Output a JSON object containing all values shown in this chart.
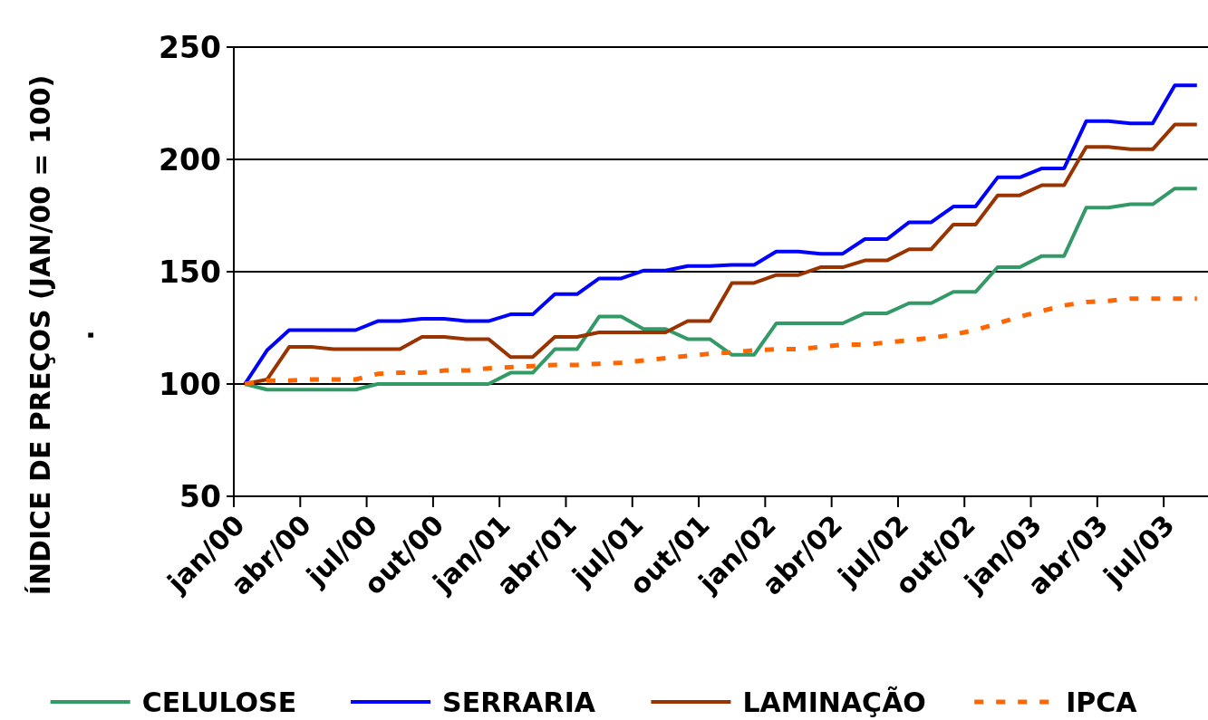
{
  "chart_data": {
    "type": "line",
    "ylabel": "ÍNDICE DE PREÇOS (JAN/00 = 100)\n.",
    "categories": [
      "jan/00",
      null,
      null,
      "abr/00",
      null,
      null,
      "jul/00",
      null,
      null,
      "out/00",
      null,
      null,
      "jan/01",
      null,
      null,
      "abr/01",
      null,
      null,
      "jul/01",
      null,
      null,
      "out/01",
      null,
      null,
      "jan/02",
      null,
      null,
      "abr/02",
      null,
      null,
      "jul/02",
      null,
      null,
      "out/02",
      null,
      null,
      "jan/03",
      null,
      null,
      "abr/03",
      null,
      null,
      "jul/03",
      null
    ],
    "ylim": [
      50,
      250
    ],
    "yticks": [
      50,
      100,
      150,
      200,
      250
    ],
    "grid": "y",
    "legend": "bottom",
    "marker": "none",
    "series": [
      {
        "name": "CELULOSE",
        "color": "#339966",
        "line_style": "solid",
        "values": [
          100,
          97.5,
          97.5,
          97.5,
          97.5,
          97.5,
          100,
          100,
          100,
          100,
          100,
          100,
          105,
          105,
          115.5,
          115.5,
          130,
          130,
          124.5,
          124.5,
          120,
          120,
          113,
          113,
          127,
          127,
          127,
          127,
          131.5,
          131.5,
          136,
          136,
          141,
          141,
          152,
          152,
          157,
          157,
          178.5,
          178.5,
          180,
          180,
          187,
          187
        ]
      },
      {
        "name": "SERRARIA",
        "color": "#0000ff",
        "line_style": "solid",
        "values": [
          100,
          115,
          124,
          124,
          124,
          124,
          128,
          128,
          129,
          129,
          128,
          128,
          131,
          131,
          140,
          140,
          147,
          147,
          150.5,
          150.5,
          152.5,
          152.5,
          153,
          153,
          159,
          159,
          158,
          158,
          164.5,
          164.5,
          172,
          172,
          179,
          179,
          192,
          192,
          196,
          196,
          217,
          217,
          216,
          216,
          233,
          233
        ]
      },
      {
        "name": "LAMINAÇÃO",
        "color": "#993300",
        "line_style": "solid",
        "values": [
          100,
          102,
          116.5,
          116.5,
          115.5,
          115.5,
          115.5,
          115.5,
          121,
          121,
          120,
          120,
          112,
          112,
          121,
          121,
          123,
          123,
          123,
          123,
          128,
          128,
          145,
          145,
          148.5,
          148.5,
          152,
          152,
          155,
          155,
          160,
          160,
          171,
          171,
          184,
          184,
          188.5,
          188.5,
          205.5,
          205.5,
          204.5,
          204.5,
          215.5,
          215.5
        ]
      },
      {
        "name": "IPCA",
        "color": "#ff6600",
        "line_style": "dashed",
        "values": [
          100,
          101.5,
          101.5,
          102,
          102,
          102,
          104.5,
          105,
          105,
          106,
          106,
          107,
          107.5,
          108,
          108.5,
          108.5,
          109,
          109.5,
          110.5,
          111.5,
          112.5,
          113.5,
          114,
          115,
          115.5,
          115.5,
          116.5,
          117.5,
          117.5,
          118.5,
          119.5,
          120.5,
          122,
          124,
          127,
          130,
          132.5,
          135,
          136.5,
          137,
          138,
          138,
          138,
          138
        ]
      }
    ]
  }
}
